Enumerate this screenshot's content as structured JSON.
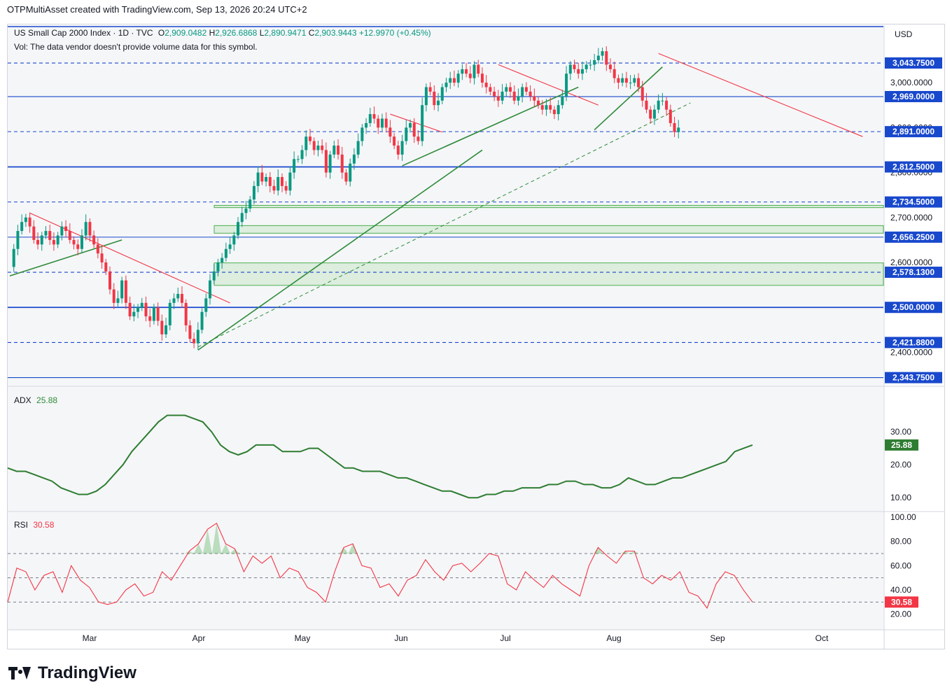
{
  "header": {
    "publisher": "OTPMultiAsset created with TradingView.com, Sep 13, 2026 20:24 UTC+2"
  },
  "legend": {
    "symbol": "US Small Cap 2000 Index · 1D · TVC",
    "open_label": "O",
    "open": "2,909.0482",
    "high_label": "H",
    "high": "2,926.6868",
    "low_label": "L",
    "low": "2,890.9471",
    "close_label": "C",
    "close": "2,903.9443",
    "change": "+12.9970 (+0.45%)",
    "vol_note": "Vol: The data vendor doesn't provide volume data for this symbol."
  },
  "currency": "USD",
  "footer": {
    "brand": "TradingView"
  },
  "colors": {
    "up": "#089981",
    "down": "#f23645",
    "level": "#1848cc",
    "trend_green": "#2e8b3a",
    "trend_red": "#f23645",
    "zone": "#c8e6c9"
  },
  "chart_data": {
    "type": "candlestick",
    "price_axis": {
      "ticks": [
        "3,000.0000",
        "2,900.0000",
        "2,800.0000",
        "2,700.0000",
        "2,600.0000",
        "2,500.0000",
        "2,400.0000"
      ],
      "tick_values": [
        3000,
        2900,
        2800,
        2700,
        2600,
        2500,
        2400
      ]
    },
    "levels": [
      {
        "value": 3043.75,
        "label": "3,043.7500",
        "style": "dashed"
      },
      {
        "value": 2969.0,
        "label": "2,969.0000",
        "style": "solid"
      },
      {
        "value": 2891.0,
        "label": "2,891.0000",
        "style": "dashed"
      },
      {
        "value": 2812.5,
        "label": "2,812.5000",
        "style": "solid-bold"
      },
      {
        "value": 2734.5,
        "label": "2,734.5000",
        "style": "dashed"
      },
      {
        "value": 2656.25,
        "label": "2,656.2500",
        "style": "solid"
      },
      {
        "value": 2578.13,
        "label": "2,578.1300",
        "style": "dashed"
      },
      {
        "value": 2500.0,
        "label": "2,500.0000",
        "style": "solid-bold"
      },
      {
        "value": 2421.88,
        "label": "2,421.8800",
        "style": "dashed"
      },
      {
        "value": 2343.75,
        "label": "2,343.7500",
        "style": "solid"
      }
    ],
    "zones": [
      {
        "from": 2722,
        "to": 2727
      },
      {
        "from": 2665,
        "to": 2682
      },
      {
        "from": 2549,
        "to": 2599
      }
    ],
    "month_labels": [
      "Mar",
      "Apr",
      "May",
      "Jun",
      "Jul",
      "Aug",
      "Sep",
      "Oct"
    ],
    "close_series": [
      2590,
      2630,
      2670,
      2690,
      2700,
      2680,
      2650,
      2640,
      2660,
      2670,
      2650,
      2640,
      2660,
      2680,
      2670,
      2650,
      2640,
      2630,
      2660,
      2690,
      2660,
      2640,
      2620,
      2600,
      2580,
      2540,
      2510,
      2520,
      2560,
      2510,
      2480,
      2490,
      2500,
      2510,
      2480,
      2470,
      2500,
      2470,
      2440,
      2460,
      2510,
      2520,
      2530,
      2510,
      2460,
      2430,
      2420,
      2450,
      2490,
      2520,
      2560,
      2580,
      2600,
      2610,
      2630,
      2640,
      2660,
      2690,
      2710,
      2720,
      2740,
      2770,
      2800,
      2780,
      2790,
      2770,
      2760,
      2790,
      2770,
      2760,
      2800,
      2830,
      2830,
      2850,
      2880,
      2870,
      2850,
      2860,
      2850,
      2800,
      2840,
      2860,
      2840,
      2800,
      2780,
      2820,
      2840,
      2870,
      2900,
      2910,
      2930,
      2920,
      2900,
      2920,
      2900,
      2880,
      2860,
      2840,
      2870,
      2900,
      2910,
      2880,
      2870,
      2950,
      2990,
      2980,
      2950,
      2960,
      2990,
      3000,
      3010,
      3000,
      3020,
      3030,
      3020,
      3010,
      3040,
      3020,
      3000,
      2990,
      2980,
      2970,
      2960,
      2980,
      2990,
      2980,
      2960,
      2970,
      2990,
      2980,
      2970,
      2960,
      2950,
      2940,
      2950,
      2940,
      2930,
      2950,
      2970,
      3020,
      3040,
      3030,
      3020,
      3030,
      3040,
      3040,
      3050,
      3060,
      3070,
      3040,
      3030,
      3010,
      3000,
      3010,
      3000,
      3000,
      3010,
      2990,
      2960,
      2940,
      2920,
      2940,
      2960,
      2960,
      2940,
      2910,
      2890,
      2900
    ],
    "overlays": [
      {
        "name": "",
        "color": "green",
        "dashed": false,
        "from_day": 0,
        "from_price": 2570,
        "to_day": 28,
        "to_price": 2650
      },
      {
        "name": "",
        "color": "green",
        "dashed": false,
        "from_day": 47,
        "from_price": 2405,
        "to_day": 118,
        "to_price": 2850
      },
      {
        "name": "",
        "color": "green",
        "dashed": false,
        "from_day": 98,
        "from_price": 2815,
        "to_day": 142,
        "to_price": 2990
      },
      {
        "name": "",
        "color": "green",
        "dashed": false,
        "from_day": 146,
        "from_price": 2895,
        "to_day": 163,
        "to_price": 3035
      },
      {
        "name": "",
        "color": "green",
        "dashed": true,
        "from_day": 47,
        "from_price": 2412,
        "to_day": 170,
        "to_price": 2955
      },
      {
        "name": "",
        "color": "red",
        "dashed": false,
        "from_day": 5,
        "from_price": 2710,
        "to_day": 55,
        "to_price": 2510
      },
      {
        "name": "",
        "color": "red",
        "dashed": false,
        "from_day": 95,
        "from_price": 2930,
        "to_day": 108,
        "to_price": 2890
      },
      {
        "name": "",
        "color": "red",
        "dashed": false,
        "from_day": 122,
        "from_price": 3040,
        "to_day": 147,
        "to_price": 2950
      },
      {
        "name": "",
        "color": "red",
        "dashed": false,
        "from_day": 162,
        "from_price": 3065,
        "to_day": 213,
        "to_price": 2880
      }
    ],
    "adx": {
      "label": "ADX",
      "last": "25.88",
      "ticks": [
        "30.00",
        "20.00",
        "10.00"
      ],
      "tick_values": [
        30,
        20,
        10
      ],
      "values": [
        19,
        18,
        18,
        17,
        16,
        15,
        13,
        12,
        11,
        11,
        12,
        14,
        17,
        20,
        24,
        27,
        30,
        33,
        35,
        35,
        35,
        34,
        33,
        30,
        26,
        24,
        23,
        24,
        26,
        26,
        26,
        24,
        24,
        24,
        25,
        25,
        23,
        21,
        19,
        19,
        18,
        18,
        18,
        17,
        16,
        16,
        15,
        14,
        13,
        12,
        12,
        11,
        10,
        10,
        11,
        11,
        12,
        12,
        13,
        13,
        13,
        14,
        14,
        15,
        15,
        14,
        14,
        13,
        13,
        14,
        16,
        15,
        14,
        14,
        15,
        16,
        16,
        17,
        18,
        19,
        20,
        21,
        24,
        25,
        26
      ]
    },
    "rsi": {
      "label": "RSI",
      "last": "30.58",
      "ticks": [
        "100.00",
        "80.00",
        "60.00",
        "40.00",
        "20.00"
      ],
      "tick_values": [
        100,
        80,
        60,
        40,
        20
      ],
      "bands": [
        70,
        50,
        30
      ],
      "values": [
        30,
        58,
        55,
        40,
        52,
        55,
        38,
        60,
        48,
        42,
        30,
        28,
        30,
        40,
        45,
        35,
        38,
        55,
        48,
        60,
        72,
        78,
        90,
        95,
        78,
        74,
        55,
        68,
        62,
        68,
        50,
        58,
        55,
        42,
        38,
        30,
        55,
        75,
        78,
        60,
        58,
        42,
        45,
        35,
        48,
        52,
        65,
        55,
        48,
        60,
        62,
        55,
        62,
        70,
        68,
        45,
        40,
        55,
        48,
        42,
        52,
        45,
        40,
        35,
        60,
        75,
        68,
        62,
        72,
        72,
        50,
        45,
        52,
        48,
        55,
        38,
        35,
        25,
        45,
        55,
        52,
        40,
        30
      ]
    }
  }
}
